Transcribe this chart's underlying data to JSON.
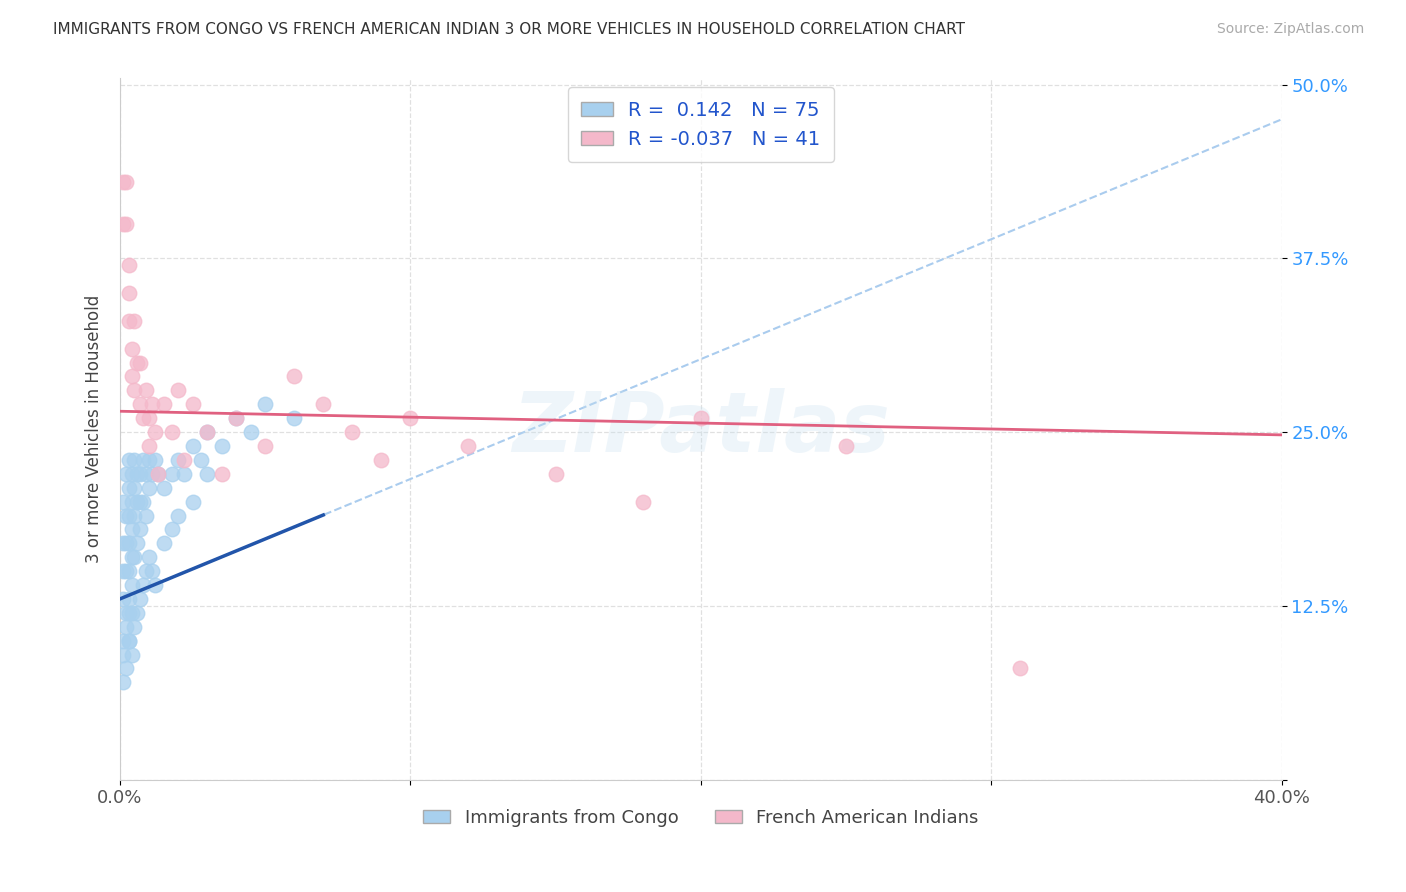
{
  "title": "IMMIGRANTS FROM CONGO VS FRENCH AMERICAN INDIAN 3 OR MORE VEHICLES IN HOUSEHOLD CORRELATION CHART",
  "source": "Source: ZipAtlas.com",
  "ylabel": "3 or more Vehicles in Household",
  "x_min": 0.0,
  "x_max": 0.4,
  "y_min": 0.0,
  "y_max": 0.505,
  "yticks": [
    0.0,
    0.125,
    0.25,
    0.375,
    0.5
  ],
  "ytick_labels": [
    "",
    "12.5%",
    "25.0%",
    "37.5%",
    "50.0%"
  ],
  "xticks": [
    0.0,
    0.1,
    0.2,
    0.3,
    0.4
  ],
  "xtick_labels": [
    "0.0%",
    "",
    "",
    "",
    "40.0%"
  ],
  "color_blue": "#a8d0ee",
  "color_pink": "#f4b8ca",
  "color_trendline_blue": "#2255aa",
  "color_trendline_pink": "#e06080",
  "color_trendline_dashed": "#aaccee",
  "background_color": "#ffffff",
  "grid_color": "#e0e0e0",
  "watermark": "ZIPatlas",
  "blue_x": [
    0.001,
    0.001,
    0.001,
    0.001,
    0.001,
    0.002,
    0.002,
    0.002,
    0.002,
    0.002,
    0.003,
    0.003,
    0.003,
    0.003,
    0.003,
    0.003,
    0.003,
    0.004,
    0.004,
    0.004,
    0.004,
    0.004,
    0.005,
    0.005,
    0.005,
    0.005,
    0.006,
    0.006,
    0.006,
    0.007,
    0.007,
    0.007,
    0.008,
    0.008,
    0.009,
    0.009,
    0.01,
    0.01,
    0.011,
    0.012,
    0.013,
    0.015,
    0.018,
    0.02,
    0.022,
    0.025,
    0.028,
    0.03,
    0.035,
    0.04,
    0.045,
    0.05,
    0.06,
    0.001,
    0.001,
    0.002,
    0.002,
    0.003,
    0.003,
    0.004,
    0.004,
    0.005,
    0.006,
    0.007,
    0.008,
    0.009,
    0.01,
    0.011,
    0.012,
    0.015,
    0.018,
    0.02,
    0.025,
    0.03
  ],
  "blue_y": [
    0.2,
    0.17,
    0.15,
    0.13,
    0.1,
    0.22,
    0.19,
    0.17,
    0.15,
    0.12,
    0.23,
    0.21,
    0.19,
    0.17,
    0.15,
    0.12,
    0.1,
    0.22,
    0.2,
    0.18,
    0.16,
    0.14,
    0.23,
    0.21,
    0.19,
    0.16,
    0.22,
    0.2,
    0.17,
    0.22,
    0.2,
    0.18,
    0.23,
    0.2,
    0.22,
    0.19,
    0.23,
    0.21,
    0.22,
    0.23,
    0.22,
    0.21,
    0.22,
    0.23,
    0.22,
    0.24,
    0.23,
    0.25,
    0.24,
    0.26,
    0.25,
    0.27,
    0.26,
    0.09,
    0.07,
    0.11,
    0.08,
    0.13,
    0.1,
    0.12,
    0.09,
    0.11,
    0.12,
    0.13,
    0.14,
    0.15,
    0.16,
    0.15,
    0.14,
    0.17,
    0.18,
    0.19,
    0.2,
    0.22
  ],
  "pink_x": [
    0.001,
    0.001,
    0.002,
    0.002,
    0.003,
    0.003,
    0.003,
    0.004,
    0.004,
    0.005,
    0.005,
    0.006,
    0.007,
    0.007,
    0.008,
    0.009,
    0.01,
    0.01,
    0.011,
    0.012,
    0.013,
    0.015,
    0.018,
    0.02,
    0.022,
    0.025,
    0.03,
    0.035,
    0.04,
    0.05,
    0.06,
    0.07,
    0.08,
    0.09,
    0.1,
    0.12,
    0.15,
    0.18,
    0.2,
    0.25,
    0.31
  ],
  "pink_y": [
    0.43,
    0.4,
    0.43,
    0.4,
    0.37,
    0.35,
    0.33,
    0.31,
    0.29,
    0.33,
    0.28,
    0.3,
    0.3,
    0.27,
    0.26,
    0.28,
    0.26,
    0.24,
    0.27,
    0.25,
    0.22,
    0.27,
    0.25,
    0.28,
    0.23,
    0.27,
    0.25,
    0.22,
    0.26,
    0.24,
    0.29,
    0.27,
    0.25,
    0.23,
    0.26,
    0.24,
    0.22,
    0.2,
    0.26,
    0.24,
    0.08
  ],
  "blue_trend_x0": 0.0,
  "blue_trend_y0": 0.13,
  "blue_trend_x1": 0.4,
  "blue_trend_y1": 0.475,
  "pink_trend_x0": 0.0,
  "pink_trend_y0": 0.265,
  "pink_trend_x1": 0.4,
  "pink_trend_y1": 0.248
}
